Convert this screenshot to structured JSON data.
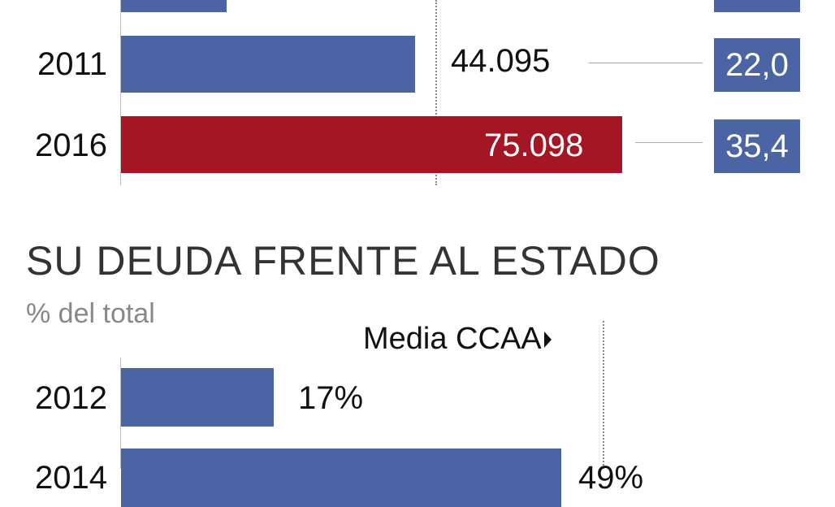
{
  "colors": {
    "bar": "#4a64a4",
    "highlight": "#a51624",
    "box": "#4a64a4"
  },
  "chart_data": [
    {
      "type": "bar",
      "orientation": "horizontal",
      "categories": [
        "",
        "2011",
        "2016"
      ],
      "values": [
        15800,
        44095,
        75098
      ],
      "value_labels": [
        "",
        "44.095",
        "75.098"
      ],
      "highlight_category": "2016",
      "side_boxes": [
        "",
        "22,0",
        "35,4"
      ]
    },
    {
      "type": "bar",
      "orientation": "horizontal",
      "title": "SU DEUDA FRENTE AL ESTADO",
      "subtitle": "% del total",
      "reference_line_label": "Media CCAA",
      "categories": [
        "2012",
        "2014"
      ],
      "values": [
        17,
        49
      ],
      "value_labels": [
        "17%",
        "49%"
      ]
    }
  ]
}
